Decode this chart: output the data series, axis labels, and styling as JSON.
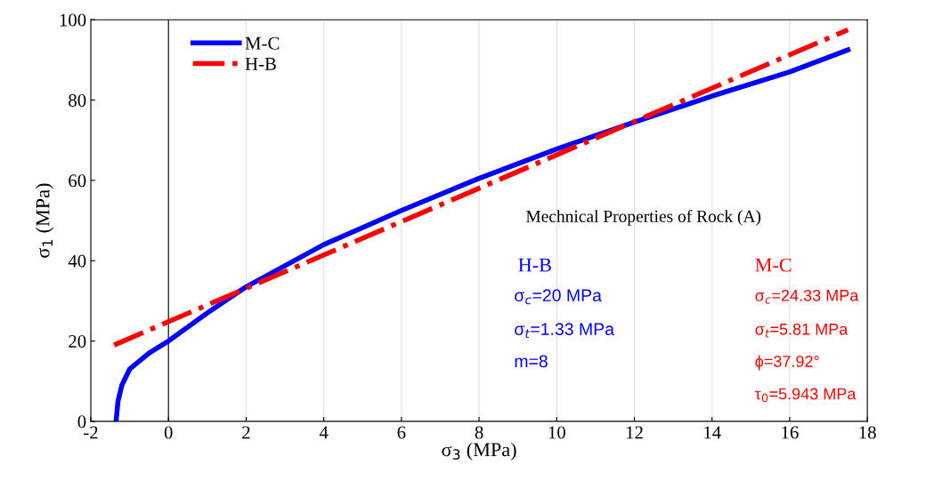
{
  "chart_data": {
    "type": "line",
    "xlabel": "σ$_{3}$ (MPa)",
    "ylabel": "σ$_{1}$ (MPa)",
    "series": [
      {
        "name": "M-C",
        "color": "#0000ff",
        "line_style": "solid",
        "x": [
          -1.35,
          -1.3,
          -1.2,
          -1.0,
          -0.5,
          0,
          1,
          2,
          4,
          6,
          8,
          10,
          12,
          14,
          16,
          17.5
        ],
        "values": [
          0,
          5,
          9,
          13,
          17,
          20,
          27,
          33.5,
          44,
          52.5,
          60.5,
          67.8,
          74.5,
          81,
          87,
          92.5
        ]
      },
      {
        "name": "H-B",
        "color": "#ff0000",
        "line_style": "dashdot",
        "x": [
          -1.4,
          17.5
        ],
        "values": [
          19,
          97.5
        ]
      }
    ],
    "xlim": [
      -2,
      18
    ],
    "xticks": [
      -2,
      0,
      2,
      4,
      6,
      8,
      10,
      12,
      14,
      16,
      18
    ],
    "ylim": [
      0,
      100
    ],
    "yticks": [
      0,
      20,
      40,
      60,
      80,
      100
    ],
    "grid": "x",
    "legend": "top left",
    "ref_lines": [
      {
        "axis": "x",
        "value": 0,
        "color": "#000000"
      }
    ],
    "annotations": [
      "Mechnical Properties of Rock (A)",
      "H-B",
      "σ$_{c}$=20 MPa",
      "σ$_{t}$=1.33 MPa",
      "m=8",
      "M-C",
      "σ$_{c}$=24.33 MPa",
      "σ$_{t}$=5.81 MPa",
      "ϕ=37.92°",
      "τ$_{0}$=5.943 MPa"
    ]
  }
}
